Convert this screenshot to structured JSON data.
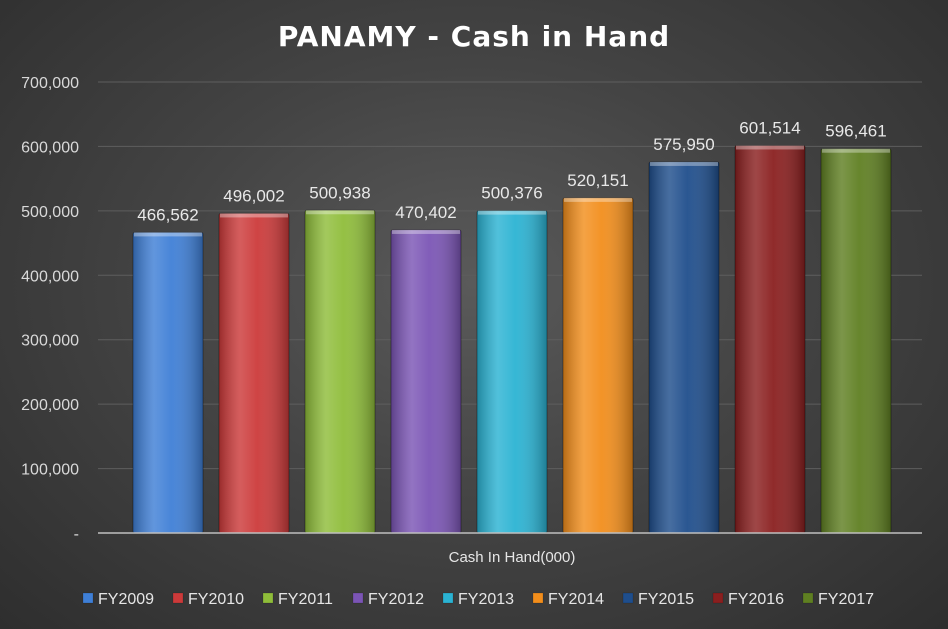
{
  "chart_data": {
    "type": "bar",
    "title": "PANAMY - Cash in Hand",
    "xlabel": "Cash In Hand(000)",
    "ylabel": "",
    "ylim": [
      0,
      700000
    ],
    "yticks": [
      "-",
      "100,000",
      "200,000",
      "300,000",
      "400,000",
      "500,000",
      "600,000",
      "700,000"
    ],
    "grid": true,
    "legend_position": "bottom",
    "categories": [
      "Cash In Hand(000)"
    ],
    "series": [
      {
        "name": "FY2009",
        "values": [
          466562
        ],
        "label": "466,562",
        "color": "#3f7fd6"
      },
      {
        "name": "FY2010",
        "values": [
          496002
        ],
        "label": "496,002",
        "color": "#cc3a3a"
      },
      {
        "name": "FY2011",
        "values": [
          500938
        ],
        "label": "500,938",
        "color": "#8fbd3a"
      },
      {
        "name": "FY2012",
        "values": [
          470402
        ],
        "label": "470,402",
        "color": "#7b55b5"
      },
      {
        "name": "FY2013",
        "values": [
          500376
        ],
        "label": "500,376",
        "color": "#2bb3d3"
      },
      {
        "name": "FY2014",
        "values": [
          520151
        ],
        "label": "520,151",
        "color": "#f28e1c"
      },
      {
        "name": "FY2015",
        "values": [
          575950
        ],
        "label": "575,950",
        "color": "#1f4e8c"
      },
      {
        "name": "FY2016",
        "values": [
          601514
        ],
        "label": "601,514",
        "color": "#8a1f1f"
      },
      {
        "name": "FY2017",
        "values": [
          596461
        ],
        "label": "596,461",
        "color": "#5f7f22"
      }
    ]
  }
}
